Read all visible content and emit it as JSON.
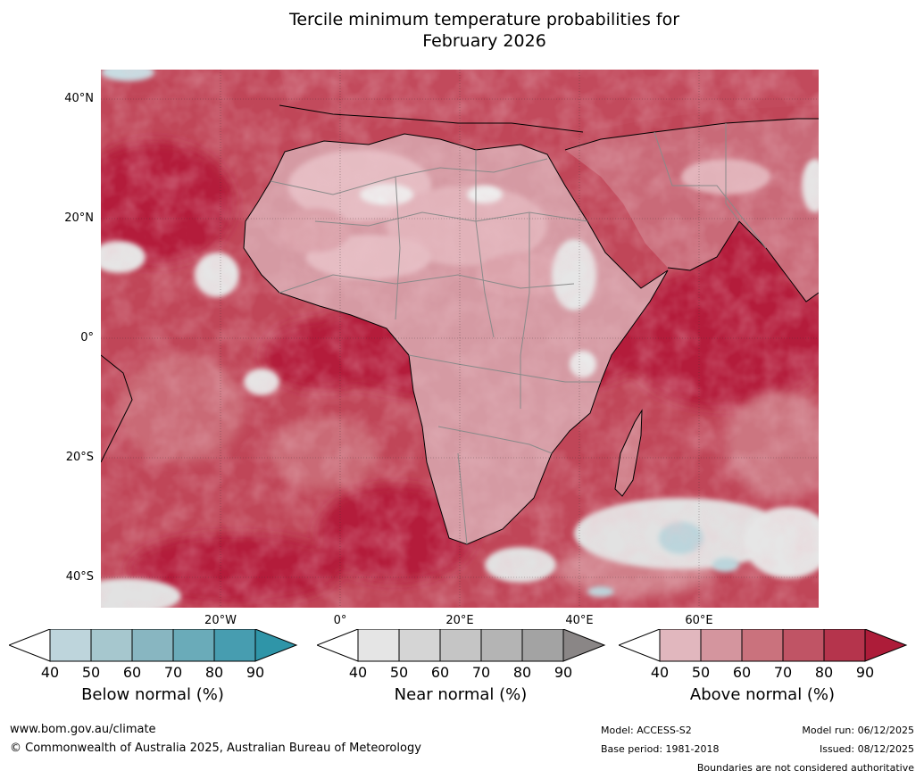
{
  "title": {
    "line1": "Tercile minimum temperature probabilities for",
    "line2": "February 2026"
  },
  "axes": {
    "lat_labels": [
      "40°N",
      "20°N",
      "0°",
      "20°S",
      "40°S"
    ],
    "lon_labels": [
      "20°W",
      "0°",
      "20°E",
      "40°E",
      "60°E"
    ]
  },
  "colorbars": [
    {
      "title": "Below normal (%)",
      "ticks": [
        "40",
        "50",
        "60",
        "70",
        "80",
        "90"
      ],
      "colors": [
        "#ffffff",
        "#bed5dc",
        "#a6c7ce",
        "#88b6c1",
        "#6aabb9",
        "#479db0",
        "#2f95a8"
      ]
    },
    {
      "title": "Near normal (%)",
      "ticks": [
        "40",
        "50",
        "60",
        "70",
        "80",
        "90"
      ],
      "colors": [
        "#ffffff",
        "#e5e5e5",
        "#d5d5d5",
        "#c5c5c5",
        "#b4b4b4",
        "#a3a3a3",
        "#8a8686"
      ]
    },
    {
      "title": "Above normal (%)",
      "ticks": [
        "40",
        "50",
        "60",
        "70",
        "80",
        "90"
      ],
      "colors": [
        "#ffffff",
        "#e1b7be",
        "#d4959e",
        "#ca727d",
        "#c05465",
        "#b5344c",
        "#ad1c39"
      ]
    }
  ],
  "map_colors": {
    "ocean_high": "#b41c3a",
    "above_80": "#bc3a50",
    "above_70": "#c55a68",
    "above_60": "#d07f89",
    "above_50": "#dba3ab",
    "above_40": "#e5bcc2",
    "near": "#e2e2e2",
    "below": "#bcd5dc",
    "coast": "#000000",
    "border": "#8a8a8a"
  },
  "footer": {
    "website": "www.bom.gov.au/climate",
    "copyright": "© Commonwealth of Australia 2025, Australian Bureau of Meteorology",
    "model": "Model: ACCESS-S2",
    "base_period": "Base period: 1981-2018",
    "model_run": "Model run: 06/12/2025",
    "issued": "Issued: 08/12/2025",
    "boundaries": "Boundaries are not considered authoritative"
  }
}
